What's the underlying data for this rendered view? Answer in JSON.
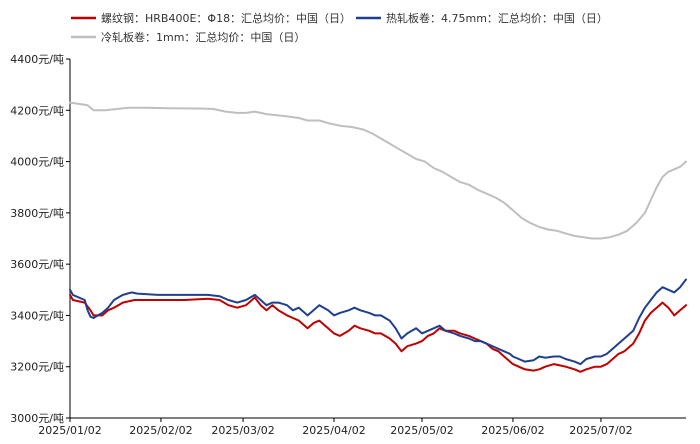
{
  "chart_data": {
    "type": "line",
    "title": "",
    "xlabel": "",
    "ylabel": "",
    "ylim": [
      3000,
      4400
    ],
    "y_ticks": [
      3000,
      3200,
      3400,
      3600,
      3800,
      4000,
      4200,
      4400
    ],
    "y_tick_labels": [
      "3000元/吨",
      "3200元/吨",
      "3400元/吨",
      "3600元/吨",
      "3800元/吨",
      "4000元/吨",
      "4200元/吨",
      "4400元/吨"
    ],
    "x_start": "2025-01-02",
    "x_end": "2025-07-31",
    "x_ticks": [
      "2025-01-02",
      "2025-02-02",
      "2025-03-02",
      "2025-04-02",
      "2025-05-02",
      "2025-06-02",
      "2025-07-02"
    ],
    "x_tick_labels": [
      "2025/01/02",
      "2025/02/02",
      "2025/03/02",
      "2025/04/02",
      "2025/05/02",
      "2025/06/02",
      "2025/07/02"
    ],
    "grid": false,
    "legend_position": "top-left",
    "series": [
      {
        "name": "螺纹钢：HRB400E：Φ18：汇总均价：中国（日）",
        "color": "#c00000",
        "points": [
          [
            "2025-01-02",
            3480
          ],
          [
            "2025-01-03",
            3460
          ],
          [
            "2025-01-07",
            3450
          ],
          [
            "2025-01-09",
            3420
          ],
          [
            "2025-01-10",
            3400
          ],
          [
            "2025-01-13",
            3400
          ],
          [
            "2025-01-15",
            3420
          ],
          [
            "2025-01-17",
            3430
          ],
          [
            "2025-01-20",
            3450
          ],
          [
            "2025-01-24",
            3460
          ],
          [
            "2025-02-01",
            3460
          ],
          [
            "2025-02-10",
            3460
          ],
          [
            "2025-02-18",
            3465
          ],
          [
            "2025-02-22",
            3460
          ],
          [
            "2025-02-25",
            3440
          ],
          [
            "2025-02-28",
            3430
          ],
          [
            "2025-03-03",
            3440
          ],
          [
            "2025-03-06",
            3470
          ],
          [
            "2025-03-08",
            3440
          ],
          [
            "2025-03-10",
            3420
          ],
          [
            "2025-03-12",
            3440
          ],
          [
            "2025-03-14",
            3420
          ],
          [
            "2025-03-17",
            3400
          ],
          [
            "2025-03-19",
            3390
          ],
          [
            "2025-03-21",
            3380
          ],
          [
            "2025-03-24",
            3350
          ],
          [
            "2025-03-26",
            3370
          ],
          [
            "2025-03-28",
            3380
          ],
          [
            "2025-03-31",
            3350
          ],
          [
            "2025-04-02",
            3330
          ],
          [
            "2025-04-04",
            3320
          ],
          [
            "2025-04-07",
            3340
          ],
          [
            "2025-04-09",
            3360
          ],
          [
            "2025-04-11",
            3350
          ],
          [
            "2025-04-14",
            3340
          ],
          [
            "2025-04-16",
            3330
          ],
          [
            "2025-04-18",
            3330
          ],
          [
            "2025-04-21",
            3310
          ],
          [
            "2025-04-23",
            3290
          ],
          [
            "2025-04-25",
            3260
          ],
          [
            "2025-04-27",
            3280
          ],
          [
            "2025-04-30",
            3290
          ],
          [
            "2025-05-02",
            3300
          ],
          [
            "2025-05-04",
            3320
          ],
          [
            "2025-05-06",
            3330
          ],
          [
            "2025-05-08",
            3350
          ],
          [
            "2025-05-10",
            3340
          ],
          [
            "2025-05-13",
            3340
          ],
          [
            "2025-05-15",
            3330
          ],
          [
            "2025-05-18",
            3320
          ],
          [
            "2025-05-20",
            3310
          ],
          [
            "2025-05-22",
            3300
          ],
          [
            "2025-05-24",
            3290
          ],
          [
            "2025-05-26",
            3270
          ],
          [
            "2025-05-28",
            3260
          ],
          [
            "2025-05-30",
            3240
          ],
          [
            "2025-06-01",
            3220
          ],
          [
            "2025-06-02",
            3210
          ],
          [
            "2025-06-04",
            3200
          ],
          [
            "2025-06-06",
            3190
          ],
          [
            "2025-06-09",
            3185
          ],
          [
            "2025-06-11",
            3190
          ],
          [
            "2025-06-13",
            3200
          ],
          [
            "2025-06-16",
            3210
          ],
          [
            "2025-06-18",
            3205
          ],
          [
            "2025-06-20",
            3200
          ],
          [
            "2025-06-23",
            3190
          ],
          [
            "2025-06-25",
            3180
          ],
          [
            "2025-06-27",
            3190
          ],
          [
            "2025-06-30",
            3200
          ],
          [
            "2025-07-02",
            3200
          ],
          [
            "2025-07-04",
            3210
          ],
          [
            "2025-07-06",
            3230
          ],
          [
            "2025-07-08",
            3250
          ],
          [
            "2025-07-10",
            3260
          ],
          [
            "2025-07-13",
            3290
          ],
          [
            "2025-07-15",
            3330
          ],
          [
            "2025-07-17",
            3380
          ],
          [
            "2025-07-19",
            3410
          ],
          [
            "2025-07-21",
            3430
          ],
          [
            "2025-07-23",
            3450
          ],
          [
            "2025-07-25",
            3430
          ],
          [
            "2025-07-27",
            3400
          ],
          [
            "2025-07-29",
            3420
          ],
          [
            "2025-07-31",
            3440
          ]
        ]
      },
      {
        "name": "热轧板卷：4.75mm：汇总均价：中国（日）",
        "color": "#1f3f8f",
        "points": [
          [
            "2025-01-02",
            3500
          ],
          [
            "2025-01-03",
            3480
          ],
          [
            "2025-01-07",
            3460
          ],
          [
            "2025-01-08",
            3420
          ],
          [
            "2025-01-09",
            3395
          ],
          [
            "2025-01-10",
            3390
          ],
          [
            "2025-01-13",
            3410
          ],
          [
            "2025-01-15",
            3430
          ],
          [
            "2025-01-17",
            3460
          ],
          [
            "2025-01-20",
            3480
          ],
          [
            "2025-01-23",
            3490
          ],
          [
            "2025-01-25",
            3485
          ],
          [
            "2025-02-01",
            3480
          ],
          [
            "2025-02-10",
            3480
          ],
          [
            "2025-02-18",
            3480
          ],
          [
            "2025-02-22",
            3475
          ],
          [
            "2025-02-25",
            3460
          ],
          [
            "2025-02-28",
            3450
          ],
          [
            "2025-03-03",
            3460
          ],
          [
            "2025-03-06",
            3480
          ],
          [
            "2025-03-08",
            3460
          ],
          [
            "2025-03-10",
            3440
          ],
          [
            "2025-03-12",
            3450
          ],
          [
            "2025-03-14",
            3450
          ],
          [
            "2025-03-17",
            3440
          ],
          [
            "2025-03-19",
            3420
          ],
          [
            "2025-03-21",
            3430
          ],
          [
            "2025-03-24",
            3400
          ],
          [
            "2025-03-26",
            3420
          ],
          [
            "2025-03-28",
            3440
          ],
          [
            "2025-03-31",
            3420
          ],
          [
            "2025-04-02",
            3400
          ],
          [
            "2025-04-04",
            3410
          ],
          [
            "2025-04-07",
            3420
          ],
          [
            "2025-04-09",
            3430
          ],
          [
            "2025-04-11",
            3420
          ],
          [
            "2025-04-14",
            3410
          ],
          [
            "2025-04-16",
            3400
          ],
          [
            "2025-04-18",
            3400
          ],
          [
            "2025-04-21",
            3380
          ],
          [
            "2025-04-23",
            3350
          ],
          [
            "2025-04-25",
            3310
          ],
          [
            "2025-04-27",
            3330
          ],
          [
            "2025-04-30",
            3350
          ],
          [
            "2025-05-02",
            3330
          ],
          [
            "2025-05-04",
            3340
          ],
          [
            "2025-05-06",
            3350
          ],
          [
            "2025-05-08",
            3360
          ],
          [
            "2025-05-10",
            3340
          ],
          [
            "2025-05-13",
            3330
          ],
          [
            "2025-05-15",
            3320
          ],
          [
            "2025-05-18",
            3310
          ],
          [
            "2025-05-20",
            3300
          ],
          [
            "2025-05-22",
            3300
          ],
          [
            "2025-05-24",
            3290
          ],
          [
            "2025-05-26",
            3280
          ],
          [
            "2025-05-28",
            3270
          ],
          [
            "2025-05-30",
            3260
          ],
          [
            "2025-06-01",
            3250
          ],
          [
            "2025-06-02",
            3240
          ],
          [
            "2025-06-04",
            3230
          ],
          [
            "2025-06-06",
            3220
          ],
          [
            "2025-06-09",
            3225
          ],
          [
            "2025-06-11",
            3240
          ],
          [
            "2025-06-13",
            3235
          ],
          [
            "2025-06-16",
            3240
          ],
          [
            "2025-06-18",
            3240
          ],
          [
            "2025-06-20",
            3230
          ],
          [
            "2025-06-23",
            3220
          ],
          [
            "2025-06-25",
            3210
          ],
          [
            "2025-06-27",
            3230
          ],
          [
            "2025-06-30",
            3240
          ],
          [
            "2025-07-02",
            3240
          ],
          [
            "2025-07-04",
            3250
          ],
          [
            "2025-07-06",
            3270
          ],
          [
            "2025-07-08",
            3290
          ],
          [
            "2025-07-10",
            3310
          ],
          [
            "2025-07-13",
            3340
          ],
          [
            "2025-07-15",
            3390
          ],
          [
            "2025-07-17",
            3430
          ],
          [
            "2025-07-19",
            3460
          ],
          [
            "2025-07-21",
            3490
          ],
          [
            "2025-07-23",
            3510
          ],
          [
            "2025-07-25",
            3500
          ],
          [
            "2025-07-27",
            3490
          ],
          [
            "2025-07-29",
            3510
          ],
          [
            "2025-07-31",
            3540
          ]
        ]
      },
      {
        "name": "冷轧板卷：1mm：汇总均价：中国（日）",
        "color": "#bfbfbf",
        "points": [
          [
            "2025-01-02",
            4230
          ],
          [
            "2025-01-05",
            4225
          ],
          [
            "2025-01-08",
            4220
          ],
          [
            "2025-01-10",
            4200
          ],
          [
            "2025-01-14",
            4200
          ],
          [
            "2025-01-18",
            4205
          ],
          [
            "2025-01-22",
            4210
          ],
          [
            "2025-01-28",
            4210
          ],
          [
            "2025-02-05",
            4208
          ],
          [
            "2025-02-15",
            4207
          ],
          [
            "2025-02-20",
            4205
          ],
          [
            "2025-02-24",
            4195
          ],
          [
            "2025-02-28",
            4190
          ],
          [
            "2025-03-03",
            4190
          ],
          [
            "2025-03-06",
            4195
          ],
          [
            "2025-03-10",
            4185
          ],
          [
            "2025-03-14",
            4180
          ],
          [
            "2025-03-18",
            4175
          ],
          [
            "2025-03-21",
            4170
          ],
          [
            "2025-03-24",
            4160
          ],
          [
            "2025-03-28",
            4160
          ],
          [
            "2025-03-31",
            4150
          ],
          [
            "2025-04-04",
            4140
          ],
          [
            "2025-04-08",
            4135
          ],
          [
            "2025-04-12",
            4125
          ],
          [
            "2025-04-15",
            4110
          ],
          [
            "2025-04-18",
            4090
          ],
          [
            "2025-04-21",
            4070
          ],
          [
            "2025-04-24",
            4050
          ],
          [
            "2025-04-27",
            4030
          ],
          [
            "2025-04-30",
            4010
          ],
          [
            "2025-05-03",
            4000
          ],
          [
            "2025-05-06",
            3975
          ],
          [
            "2025-05-09",
            3960
          ],
          [
            "2025-05-12",
            3940
          ],
          [
            "2025-05-15",
            3920
          ],
          [
            "2025-05-18",
            3910
          ],
          [
            "2025-05-21",
            3890
          ],
          [
            "2025-05-24",
            3875
          ],
          [
            "2025-05-27",
            3860
          ],
          [
            "2025-05-30",
            3840
          ],
          [
            "2025-06-02",
            3810
          ],
          [
            "2025-06-05",
            3780
          ],
          [
            "2025-06-08",
            3760
          ],
          [
            "2025-06-11",
            3745
          ],
          [
            "2025-06-14",
            3735
          ],
          [
            "2025-06-17",
            3730
          ],
          [
            "2025-06-20",
            3720
          ],
          [
            "2025-06-23",
            3710
          ],
          [
            "2025-06-26",
            3705
          ],
          [
            "2025-06-29",
            3700
          ],
          [
            "2025-07-02",
            3700
          ],
          [
            "2025-07-05",
            3705
          ],
          [
            "2025-07-08",
            3715
          ],
          [
            "2025-07-11",
            3730
          ],
          [
            "2025-07-14",
            3760
          ],
          [
            "2025-07-17",
            3800
          ],
          [
            "2025-07-19",
            3850
          ],
          [
            "2025-07-21",
            3900
          ],
          [
            "2025-07-23",
            3940
          ],
          [
            "2025-07-25",
            3960
          ],
          [
            "2025-07-27",
            3970
          ],
          [
            "2025-07-29",
            3980
          ],
          [
            "2025-07-31",
            4000
          ]
        ]
      }
    ]
  }
}
